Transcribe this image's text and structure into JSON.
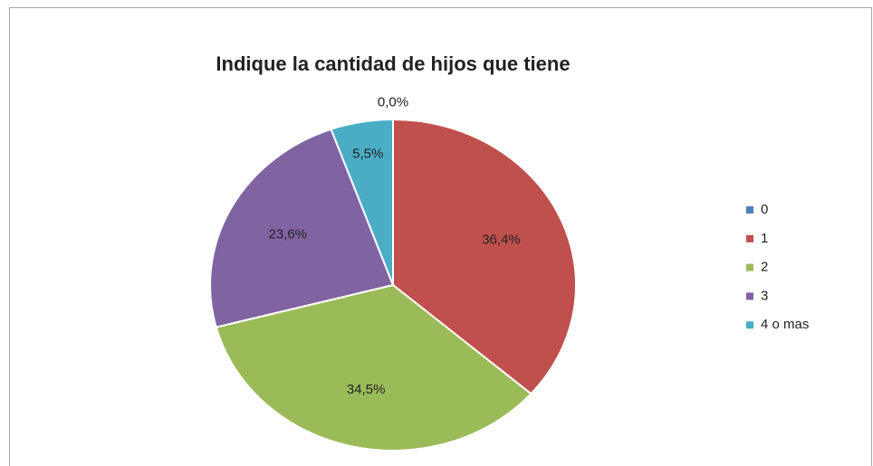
{
  "chart_data": {
    "type": "pie",
    "title": "Indique la cantidad de hijos que tiene",
    "categories": [
      "0",
      "1",
      "2",
      "3",
      "4 o mas"
    ],
    "values": [
      0,
      36.4,
      34.5,
      23.6,
      5.5
    ],
    "value_labels": [
      "0,0%",
      "36,4%",
      "34,5%",
      "23,6%",
      "5,5%"
    ],
    "colors": [
      "#4f81bd",
      "#c0504d",
      "#9bbb59",
      "#8064a2",
      "#4bacc6"
    ],
    "legend": "right"
  }
}
